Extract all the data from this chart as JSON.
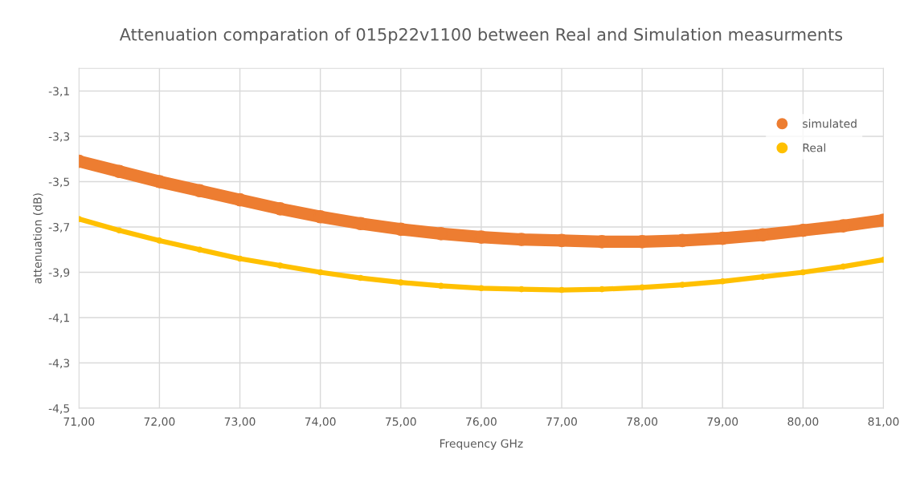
{
  "chart_data": {
    "type": "line",
    "title": "Attenuation comparation of 015p22v1100 between Real and Simulation measurments",
    "xlabel": "Frequency GHz",
    "ylabel": "attenuation (dB)",
    "x": [
      71,
      71.5,
      72,
      72.5,
      73,
      73.5,
      74,
      74.5,
      75,
      75.5,
      76,
      76.5,
      77,
      77.5,
      78,
      78.5,
      79,
      79.5,
      80,
      80.5,
      81
    ],
    "series": [
      {
        "name": "simulated",
        "color": "#ed7d31",
        "values": [
          -3.41,
          -3.455,
          -3.5,
          -3.54,
          -3.58,
          -3.62,
          -3.655,
          -3.685,
          -3.71,
          -3.73,
          -3.745,
          -3.755,
          -3.76,
          -3.765,
          -3.765,
          -3.76,
          -3.75,
          -3.735,
          -3.715,
          -3.695,
          -3.67
        ]
      },
      {
        "name": "Real",
        "color": "#ffc000",
        "values": [
          -3.665,
          -3.715,
          -3.76,
          -3.8,
          -3.84,
          -3.87,
          -3.9,
          -3.925,
          -3.945,
          -3.96,
          -3.97,
          -3.975,
          -3.978,
          -3.975,
          -3.967,
          -3.955,
          -3.94,
          -3.92,
          -3.9,
          -3.875,
          -3.845
        ]
      }
    ],
    "xlim": [
      71,
      81
    ],
    "xticks": [
      {
        "value": 71,
        "label": "71,00"
      },
      {
        "value": 72,
        "label": "72,00"
      },
      {
        "value": 73,
        "label": "73,00"
      },
      {
        "value": 74,
        "label": "74,00"
      },
      {
        "value": 75,
        "label": "75,00"
      },
      {
        "value": 76,
        "label": "76,00"
      },
      {
        "value": 77,
        "label": "77,00"
      },
      {
        "value": 78,
        "label": "78,00"
      },
      {
        "value": 79,
        "label": "79,00"
      },
      {
        "value": 80,
        "label": "80,00"
      },
      {
        "value": 81,
        "label": "81,00"
      }
    ],
    "ylim": [
      -4.5,
      -3.0
    ],
    "yticks": [
      {
        "value": -4.5,
        "label": "-4,5"
      },
      {
        "value": -4.3,
        "label": "-4,3"
      },
      {
        "value": -4.1,
        "label": "-4,1"
      },
      {
        "value": -3.9,
        "label": "-3,9"
      },
      {
        "value": -3.7,
        "label": "-3,7"
      },
      {
        "value": -3.5,
        "label": "-3,5"
      },
      {
        "value": -3.3,
        "label": "-3,3"
      },
      {
        "value": -3.1,
        "label": "-3,1"
      }
    ],
    "grid": true,
    "legend": "top right",
    "marker": "circle",
    "line_style": "solid"
  }
}
